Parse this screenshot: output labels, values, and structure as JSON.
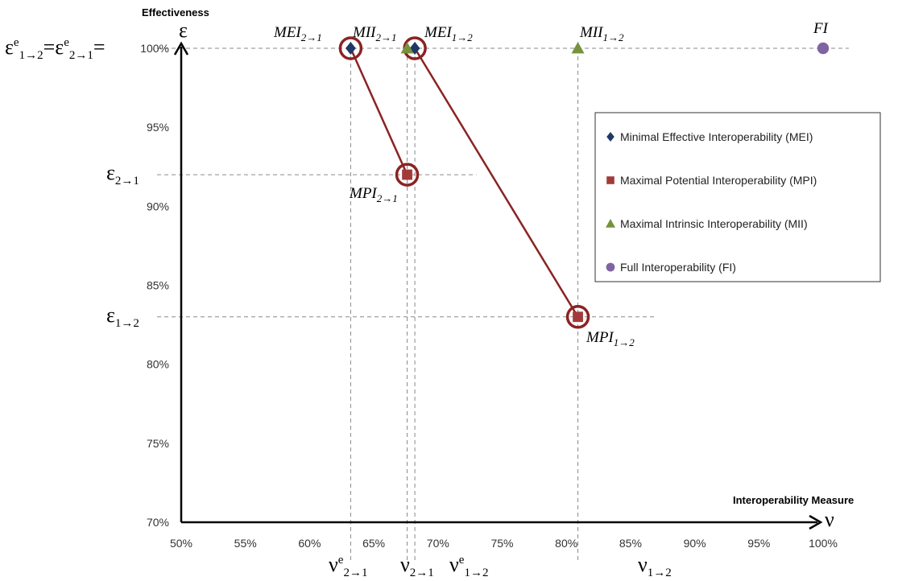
{
  "chart_data": {
    "type": "scatter",
    "xlabel": "Interoperability Measure",
    "ylabel": "Effectiveness",
    "x_symbol": "ν",
    "y_symbol": "ε",
    "xlim": [
      50,
      100
    ],
    "ylim": [
      70,
      100
    ],
    "x_ticks": [
      "50%",
      "55%",
      "60%",
      "65%",
      "70%",
      "75%",
      "80%",
      "85%",
      "90%",
      "95%",
      "100%"
    ],
    "y_ticks": [
      "70%",
      "75%",
      "80%",
      "85%",
      "90%",
      "95%",
      "100%"
    ],
    "series": [
      {
        "name": "Minimal Effective Interoperability (MEI)",
        "marker": "diamond",
        "color": "#1f3864",
        "points": [
          {
            "label": "MEI",
            "sub": "2→1",
            "x": 63.2,
            "y": 100
          },
          {
            "label": "MEI",
            "sub": "1→2",
            "x": 68.2,
            "y": 100
          }
        ]
      },
      {
        "name": "Maximal Potential Interoperability (MPI)",
        "marker": "square",
        "color": "#a33a3a",
        "points": [
          {
            "label": "MPI",
            "sub": "2→1",
            "x": 67.6,
            "y": 92
          },
          {
            "label": "MPI",
            "sub": "1→2",
            "x": 80.9,
            "y": 83
          }
        ]
      },
      {
        "name": "Maximal Intrinsic Interoperability (MII)",
        "marker": "triangle",
        "color": "#76923c",
        "points": [
          {
            "label": "MII",
            "sub": "2→1",
            "x": 67.6,
            "y": 100
          },
          {
            "label": "MII",
            "sub": "1→2",
            "x": 80.9,
            "y": 100
          }
        ]
      },
      {
        "name": "Full Interoperability (FI)",
        "marker": "circle",
        "color": "#8064a2",
        "points": [
          {
            "label": "FI",
            "sub": "",
            "x": 100,
            "y": 100
          }
        ]
      }
    ],
    "connectors": [
      {
        "from": [
          63.2,
          100
        ],
        "to": [
          67.6,
          92
        ]
      },
      {
        "from": [
          68.2,
          100
        ],
        "to": [
          80.9,
          83
        ]
      }
    ],
    "highlight_rings": [
      [
        63.2,
        100
      ],
      [
        68.2,
        100
      ],
      [
        67.6,
        92
      ],
      [
        80.9,
        83
      ]
    ],
    "y_guides": [
      {
        "y": 100,
        "label": "ε",
        "sup": "e",
        "sub": "1→2",
        "sep": "=",
        "label2": "ε",
        "sup2": "e",
        "sub2": "2→1",
        "tail": "="
      },
      {
        "y": 92,
        "label": "ε",
        "sub": "2→1"
      },
      {
        "y": 83,
        "label": "ε",
        "sub": "1→2"
      }
    ],
    "x_guides": [
      {
        "x": 63.2,
        "label": "ν",
        "sup": "e",
        "sub": "2→1"
      },
      {
        "x": 67.6,
        "label": "ν",
        "sub": "2→1"
      },
      {
        "x": 68.2,
        "label": "ν",
        "sup": "e",
        "sub": "1→2"
      },
      {
        "x": 80.9,
        "label": "ν",
        "sub": "1→2"
      }
    ],
    "legend_position": "right",
    "grid": false
  },
  "colors": {
    "axis": "#000000",
    "guide": "#8a8a8a",
    "connector": "#8b2323",
    "ring": "#8b2323"
  }
}
